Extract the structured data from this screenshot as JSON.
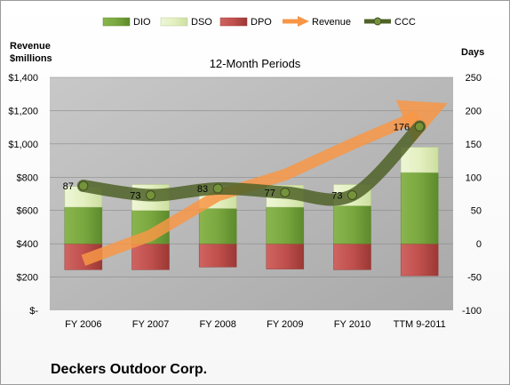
{
  "chart_data": {
    "type": "bar",
    "subtitle": "12-Month Periods",
    "company": "Deckers Outdoor Corp.",
    "left_axis_title": [
      "Revenue",
      "$millions"
    ],
    "right_axis_title": "Days",
    "categories": [
      "FY 2006",
      "FY 2007",
      "FY 2008",
      "FY 2009",
      "FY 2010",
      "TTM 9-2011"
    ],
    "left_ticks": [
      "$-",
      "$200",
      "$400",
      "$600",
      "$800",
      "$1,000",
      "$1,200",
      "$1,400"
    ],
    "right_ticks": [
      "-100",
      "-50",
      "0",
      "50",
      "100",
      "150",
      "200",
      "250"
    ],
    "left_range": [
      0,
      1400
    ],
    "right_range": [
      -100,
      250
    ],
    "legend": [
      "DIO",
      "DSO",
      "DPO",
      "Revenue",
      "CCC"
    ],
    "series": [
      {
        "name": "DIO",
        "axis": "days",
        "values": [
          55,
          50,
          53,
          55,
          57,
          107
        ]
      },
      {
        "name": "DSO",
        "axis": "days",
        "values": [
          31,
          39,
          35,
          33,
          32,
          38
        ]
      },
      {
        "name": "DPO",
        "axis": "days",
        "values": [
          -39,
          -39,
          -35,
          -38,
          -39,
          -48
        ]
      },
      {
        "name": "Revenue",
        "axis": "revenue",
        "values": [
          300,
          450,
          690,
          815,
          1000,
          1200
        ]
      },
      {
        "name": "CCC",
        "axis": "days",
        "values": [
          87,
          73,
          83,
          77,
          73,
          176
        ]
      }
    ],
    "ccc_labels": [
      "87",
      "73",
      "83",
      "77",
      "73",
      "176"
    ],
    "colors": {
      "DIO": "#76a33e",
      "DSO": "#e3f0c0",
      "DPO": "#c0504d",
      "Revenue": "#f79646",
      "CCC": "#4f6228",
      "plot_bg": "#bfbfbf"
    }
  }
}
